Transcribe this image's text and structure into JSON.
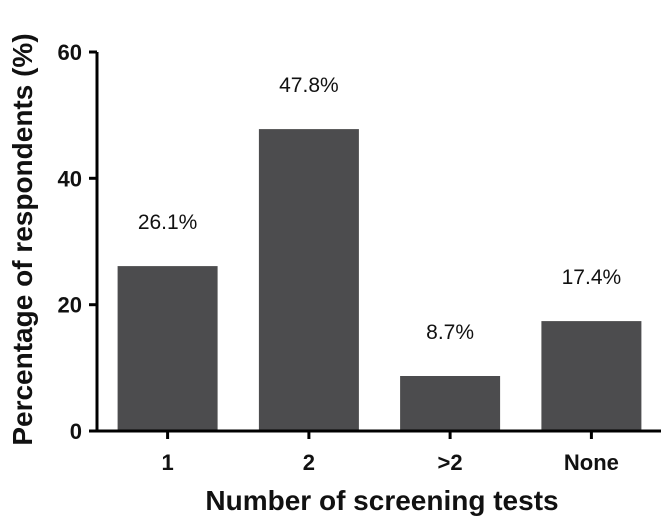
{
  "chart_data": {
    "type": "bar",
    "categories": [
      "1",
      "2",
      ">2",
      "None"
    ],
    "values": [
      26.1,
      47.8,
      8.7,
      17.4
    ],
    "data_labels": [
      "26.1%",
      "47.8%",
      "8.7%",
      "17.4%"
    ],
    "title": "",
    "xlabel": "Number of screening tests",
    "ylabel": "Percentage of respondents (%)",
    "ylim": [
      0,
      60
    ],
    "y_ticks": [
      0,
      20,
      40,
      60
    ],
    "y_tick_labels": [
      "0",
      "20",
      "40",
      "60"
    ],
    "grid": false,
    "legend": "none",
    "colors": {
      "bar": "#4c4c4e",
      "axis": "#000000",
      "text": "#111111",
      "background": "#ffffff"
    }
  }
}
